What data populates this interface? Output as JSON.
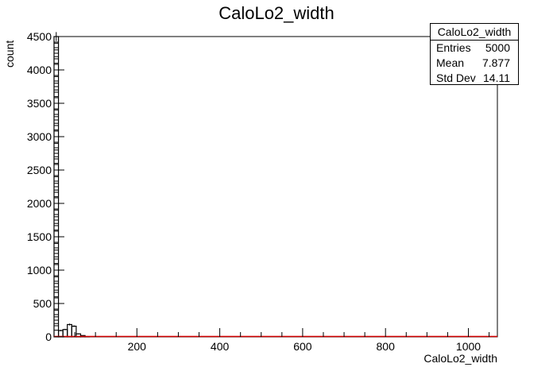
{
  "chart_data": {
    "type": "bar",
    "title": "CaloLo2_width",
    "xlabel": "CaloLo2_width",
    "ylabel": "count",
    "xlim": [
      0,
      1070
    ],
    "ylim": [
      0,
      4500
    ],
    "x_ticks": [
      200,
      400,
      600,
      800,
      1000
    ],
    "y_ticks": [
      0,
      500,
      1000,
      1500,
      2000,
      2500,
      3000,
      3500,
      4000,
      4500
    ],
    "bin_width": 10.7,
    "bins": [
      {
        "x": [
          0,
          10.7
        ],
        "value": 4500
      },
      {
        "x": [
          10.7,
          21.4
        ],
        "value": 95
      },
      {
        "x": [
          21.4,
          32.1
        ],
        "value": 110
      },
      {
        "x": [
          32.1,
          42.8
        ],
        "value": 185
      },
      {
        "x": [
          42.8,
          53.5
        ],
        "value": 160
      },
      {
        "x": [
          53.5,
          64.2
        ],
        "value": 45
      },
      {
        "x": [
          64.2,
          74.9
        ],
        "value": 20
      },
      {
        "x": [
          74.9,
          85.6
        ],
        "value": 5
      }
    ],
    "legend": "none",
    "grid": false,
    "line_color": "#000000",
    "fill_color": "#d40000"
  },
  "stats_box": {
    "title": "CaloLo2_width",
    "rows": [
      {
        "label": "Entries",
        "value": "5000"
      },
      {
        "label": "Mean",
        "value": "7.877"
      },
      {
        "label": "Std Dev",
        "value": "14.11"
      }
    ]
  }
}
